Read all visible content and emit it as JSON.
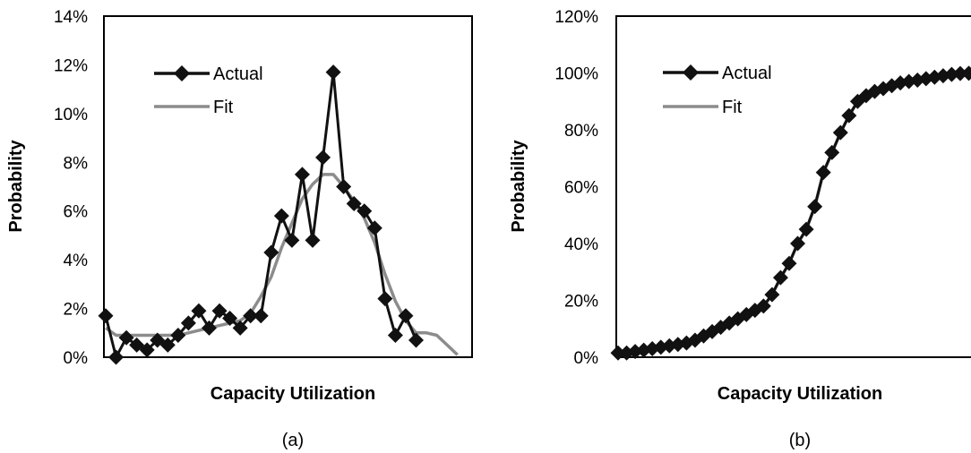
{
  "chart_data": [
    {
      "type": "line",
      "panel_label": "(a)",
      "xlabel": "Capacity Utilization",
      "ylabel": "Probability",
      "ylim": [
        0,
        0.14
      ],
      "yticks": [
        0,
        0.02,
        0.04,
        0.06,
        0.08,
        0.1,
        0.12,
        0.14
      ],
      "ytick_labels": [
        "0%",
        "2%",
        "4%",
        "6%",
        "8%",
        "10%",
        "12%",
        "14%"
      ],
      "x_ticks_shown": false,
      "grid": false,
      "legend_position": "upper-left",
      "series": [
        {
          "name": "Actual",
          "marker": "diamond",
          "color": "#111111",
          "x": [
            0,
            1,
            2,
            3,
            4,
            5,
            6,
            7,
            8,
            9,
            10,
            11,
            12,
            13,
            14,
            15,
            16,
            17,
            18,
            19,
            20,
            21,
            22,
            23,
            24,
            25,
            26,
            27,
            28,
            29,
            30
          ],
          "values": [
            0.017,
            0.0,
            0.008,
            0.005,
            0.003,
            0.007,
            0.005,
            0.009,
            0.014,
            0.019,
            0.012,
            0.019,
            0.016,
            0.012,
            0.017,
            0.017,
            0.043,
            0.058,
            0.048,
            0.075,
            0.048,
            0.082,
            0.117,
            0.07,
            0.063,
            0.06,
            0.053,
            0.024,
            0.009,
            0.017,
            0.007
          ]
        },
        {
          "name": "Fit",
          "marker": "none",
          "color": "#8c8c8c",
          "x": [
            0,
            1,
            2,
            3,
            4,
            5,
            6,
            7,
            8,
            9,
            10,
            11,
            12,
            13,
            14,
            15,
            16,
            17,
            18,
            19,
            20,
            21,
            22,
            23,
            24,
            25,
            26,
            27,
            28,
            29,
            30,
            31,
            32,
            33,
            34
          ],
          "values": [
            0.012,
            0.009,
            0.009,
            0.009,
            0.009,
            0.009,
            0.009,
            0.009,
            0.01,
            0.011,
            0.012,
            0.013,
            0.014,
            0.015,
            0.018,
            0.025,
            0.033,
            0.045,
            0.055,
            0.065,
            0.071,
            0.075,
            0.075,
            0.07,
            0.064,
            0.057,
            0.047,
            0.034,
            0.023,
            0.015,
            0.01,
            0.01,
            0.009,
            0.005,
            0.001
          ]
        }
      ]
    },
    {
      "type": "line",
      "panel_label": "(b)",
      "xlabel": "Capacity Utilization",
      "ylabel": "Probability",
      "ylim": [
        0,
        1.2
      ],
      "yticks": [
        0,
        0.2,
        0.4,
        0.6,
        0.8,
        1.0,
        1.2
      ],
      "ytick_labels": [
        "0%",
        "20%",
        "40%",
        "60%",
        "80%",
        "100%",
        "120%"
      ],
      "x_ticks_shown": false,
      "grid": false,
      "legend_position": "upper-left",
      "series": [
        {
          "name": "Actual",
          "marker": "diamond",
          "color": "#111111",
          "x": [
            0,
            1,
            2,
            3,
            4,
            5,
            6,
            7,
            8,
            9,
            10,
            11,
            12,
            13,
            14,
            15,
            16,
            17,
            18,
            19,
            20,
            21,
            22,
            23,
            24,
            25,
            26,
            27,
            28,
            29,
            30,
            31,
            32,
            33,
            34,
            35,
            36,
            37,
            38,
            39,
            40,
            41,
            42
          ],
          "values": [
            0.015,
            0.015,
            0.02,
            0.025,
            0.03,
            0.035,
            0.04,
            0.045,
            0.05,
            0.06,
            0.075,
            0.09,
            0.105,
            0.12,
            0.135,
            0.15,
            0.165,
            0.18,
            0.22,
            0.28,
            0.33,
            0.4,
            0.45,
            0.53,
            0.65,
            0.72,
            0.79,
            0.85,
            0.9,
            0.92,
            0.935,
            0.945,
            0.955,
            0.965,
            0.97,
            0.975,
            0.98,
            0.985,
            0.99,
            0.995,
            0.998,
            0.999,
            1.0
          ]
        },
        {
          "name": "Fit",
          "marker": "none",
          "color": "#8c8c8c",
          "x": [
            0,
            1,
            2,
            3,
            4,
            5,
            6,
            7,
            8,
            9,
            10,
            11,
            12,
            13,
            14,
            15,
            16,
            17,
            18,
            19,
            20,
            21,
            22,
            23,
            24,
            25,
            26,
            27,
            28,
            29,
            30,
            31,
            32,
            33,
            34,
            35,
            36,
            37,
            38,
            39,
            40,
            41,
            42
          ],
          "values": [
            0.015,
            0.015,
            0.02,
            0.025,
            0.03,
            0.035,
            0.04,
            0.045,
            0.05,
            0.06,
            0.075,
            0.09,
            0.105,
            0.12,
            0.135,
            0.15,
            0.165,
            0.18,
            0.22,
            0.28,
            0.33,
            0.4,
            0.45,
            0.53,
            0.65,
            0.72,
            0.79,
            0.85,
            0.9,
            0.92,
            0.935,
            0.945,
            0.955,
            0.965,
            0.97,
            0.975,
            0.98,
            0.985,
            0.99,
            0.995,
            0.998,
            0.999,
            1.0
          ]
        }
      ]
    }
  ]
}
